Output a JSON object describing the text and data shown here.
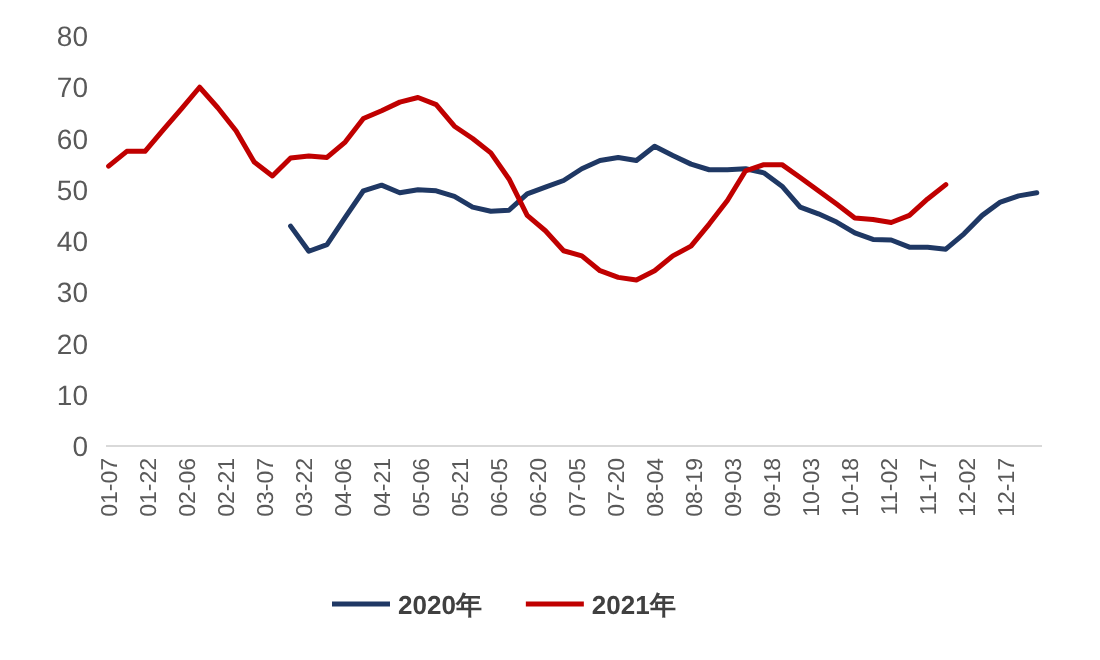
{
  "chart_data": {
    "type": "line",
    "x": [
      "--01-07",
      "--01-14",
      "--01-21",
      "--01-28",
      "--02-04",
      "--02-11",
      "--02-18",
      "--02-25",
      "--03-03",
      "--03-10",
      "--03-17",
      "--03-24",
      "--03-31",
      "--04-07",
      "--04-14",
      "--04-21",
      "--04-28",
      "--05-05",
      "--05-12",
      "--05-19",
      "--05-26",
      "--06-02",
      "--06-09",
      "--06-16",
      "--06-23",
      "--06-30",
      "--07-07",
      "--07-14",
      "--07-21",
      "--07-28",
      "--08-04",
      "--08-11",
      "--08-18",
      "--08-25",
      "--09-01",
      "--09-08",
      "--09-15",
      "--09-22",
      "--09-29",
      "--10-06",
      "--10-13",
      "--10-20",
      "--10-27",
      "--11-03",
      "--11-10",
      "--11-17",
      "--11-24",
      "--12-01",
      "--12-08",
      "--12-15",
      "--12-22",
      "--12-29"
    ],
    "series": [
      {
        "name": "2020年",
        "color": "#1f3864",
        "values": [
          null,
          null,
          null,
          null,
          null,
          null,
          null,
          null,
          null,
          null,
          42.9,
          38.0,
          39.3,
          44.6,
          49.8,
          50.9,
          49.4,
          50.0,
          49.8,
          48.7,
          46.6,
          45.8,
          46.0,
          49.2,
          50.5,
          51.8,
          54.1,
          55.7,
          56.3,
          55.7,
          58.5,
          56.7,
          55.0,
          53.9,
          53.9,
          54.1,
          53.3,
          50.7,
          46.6,
          45.3,
          43.7,
          41.6,
          40.3,
          40.2,
          38.8,
          38.8,
          38.4,
          41.4,
          45.0,
          47.6,
          48.8,
          49.4
        ]
      },
      {
        "name": "2021年",
        "color": "#c00000",
        "values": [
          54.6,
          57.5,
          57.5,
          61.7,
          65.8,
          70.0,
          66.0,
          61.5,
          55.4,
          52.7,
          56.2,
          56.6,
          56.3,
          59.3,
          63.9,
          65.4,
          67.1,
          68.0,
          66.6,
          62.4,
          60.0,
          57.2,
          52.1,
          45.0,
          42.0,
          38.1,
          37.1,
          34.2,
          32.9,
          32.4,
          34.2,
          37.1,
          39.0,
          43.3,
          47.9,
          53.7,
          54.9,
          54.9,
          52.4,
          49.8,
          47.2,
          44.5,
          44.2,
          43.6,
          45.0,
          48.2,
          51.0,
          null,
          null,
          null,
          null,
          null
        ]
      }
    ],
    "xlim": [
      "--01-06",
      "--12-31"
    ],
    "xticks": [
      {
        "value": "--01-07",
        "label": "01-07"
      },
      {
        "value": "--01-22",
        "label": "01-22"
      },
      {
        "value": "--02-06",
        "label": "02-06"
      },
      {
        "value": "--02-21",
        "label": "02-21"
      },
      {
        "value": "--03-07",
        "label": "03-07"
      },
      {
        "value": "--03-22",
        "label": "03-22"
      },
      {
        "value": "--04-06",
        "label": "04-06"
      },
      {
        "value": "--04-21",
        "label": "04-21"
      },
      {
        "value": "--05-06",
        "label": "05-06"
      },
      {
        "value": "--05-21",
        "label": "05-21"
      },
      {
        "value": "--06-05",
        "label": "06-05"
      },
      {
        "value": "--06-20",
        "label": "06-20"
      },
      {
        "value": "--07-05",
        "label": "07-05"
      },
      {
        "value": "--07-20",
        "label": "07-20"
      },
      {
        "value": "--08-04",
        "label": "08-04"
      },
      {
        "value": "--08-19",
        "label": "08-19"
      },
      {
        "value": "--09-03",
        "label": "09-03"
      },
      {
        "value": "--09-18",
        "label": "09-18"
      },
      {
        "value": "--10-03",
        "label": "10-03"
      },
      {
        "value": "--10-18",
        "label": "10-18"
      },
      {
        "value": "--11-02",
        "label": "11-02"
      },
      {
        "value": "--11-17",
        "label": "11-17"
      },
      {
        "value": "--12-02",
        "label": "12-02"
      },
      {
        "value": "--12-17",
        "label": "12-17"
      }
    ],
    "ylim": [
      0,
      80
    ],
    "yticks": [
      0,
      10,
      20,
      30,
      40,
      50,
      60,
      70,
      80
    ],
    "grid": false,
    "legend": "bottom",
    "marker": "none",
    "line_style": "solid"
  }
}
